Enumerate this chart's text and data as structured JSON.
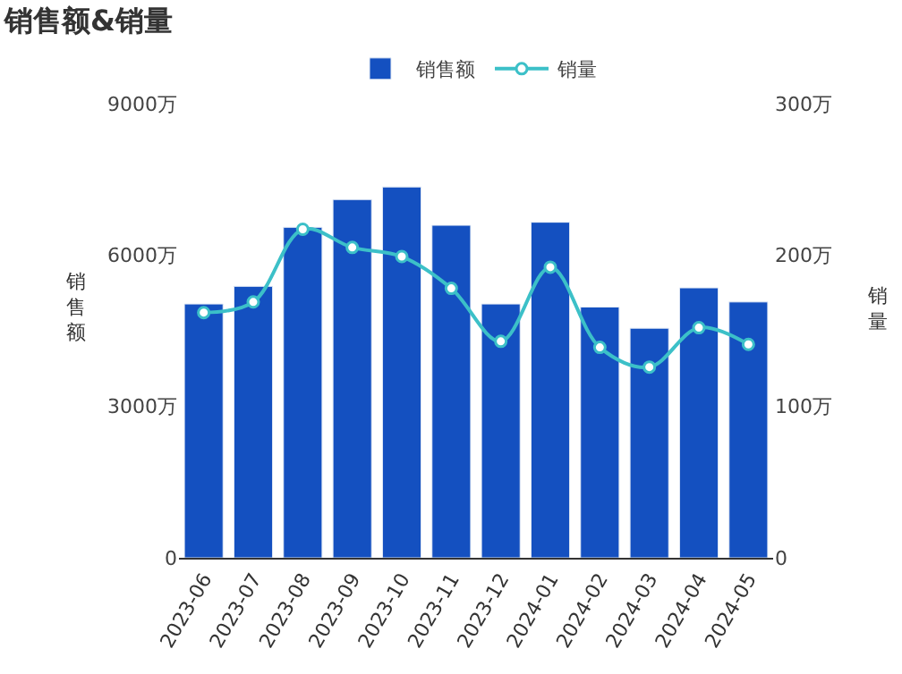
{
  "chart_data": {
    "type": "bar",
    "title": "销售额&销量",
    "ylabel": "销售额",
    "y2label": "销量",
    "categories": [
      "2023-06",
      "2023-07",
      "2023-08",
      "2023-09",
      "2023-10",
      "2023-11",
      "2023-12",
      "2024-01",
      "2024-02",
      "2024-03",
      "2024-04",
      "2024-05"
    ],
    "series": [
      {
        "name": "销售额",
        "color": "#1450c0",
        "values": [
          5030,
          5380,
          6550,
          7100,
          7350,
          6590,
          5030,
          6650,
          4970,
          4550,
          5350,
          5070
        ]
      },
      {
        "name": "销量",
        "type": "line",
        "axis": "y2",
        "color": "#3cc0c8",
        "marker": "circle",
        "values": [
          162,
          169,
          217,
          205,
          199,
          178,
          143,
          192,
          139,
          126,
          152,
          141
        ]
      }
    ],
    "ylim": [
      0,
      9000
    ],
    "yticks": [
      0,
      {
        "value": 3000,
        "label": "3000万"
      },
      {
        "value": 6000,
        "label": "6000万"
      },
      {
        "value": 9000,
        "label": "9000万"
      }
    ],
    "y2lim": [
      0,
      300
    ],
    "y2ticks": [
      0,
      {
        "value": 100,
        "label": "100万"
      },
      {
        "value": 200,
        "label": "200万"
      },
      {
        "value": 300,
        "label": "300万"
      }
    ],
    "legend": "top"
  }
}
